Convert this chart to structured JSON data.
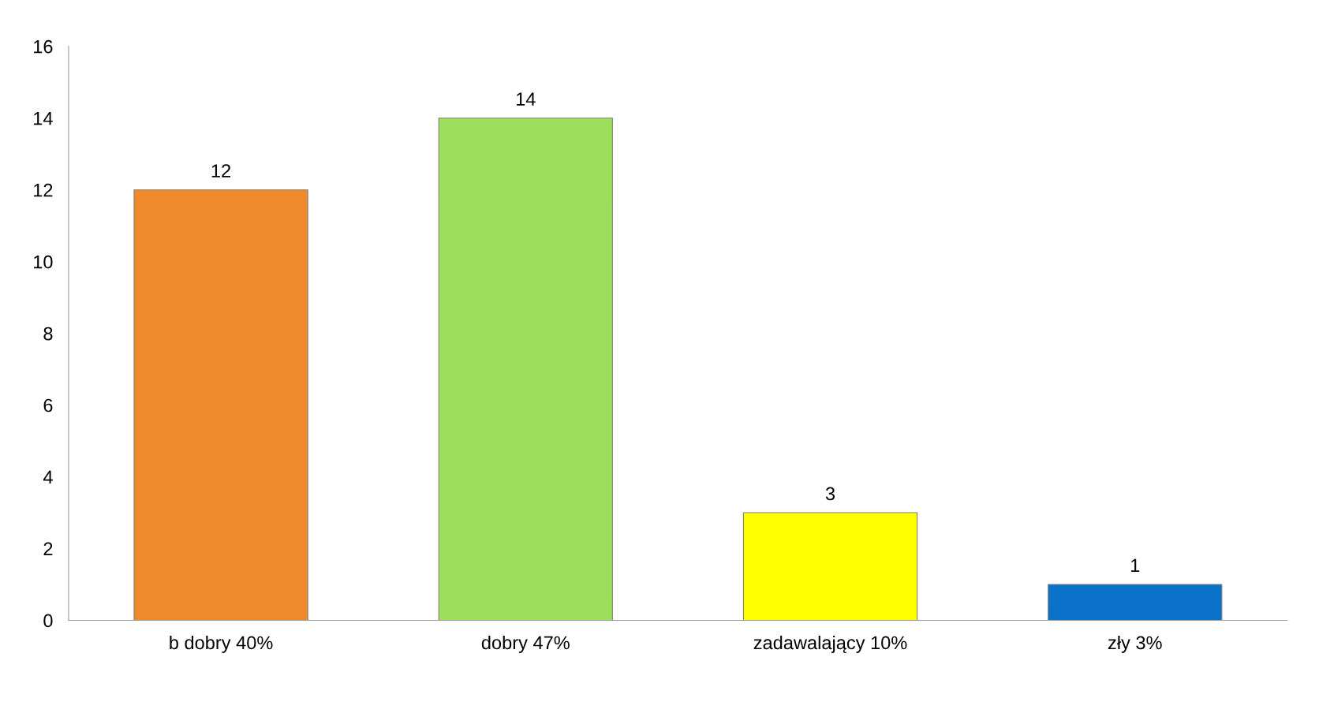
{
  "chart_data": {
    "type": "bar",
    "categories": [
      "b dobry 40%",
      "dobry 47%",
      "zadawalający 10%",
      "zły 3%"
    ],
    "values": [
      12,
      14,
      3,
      1
    ],
    "colors": [
      "#ee8a2c",
      "#9ddf5a",
      "#ffff00",
      "#0a72c8"
    ],
    "ylim": [
      0,
      16
    ],
    "yticks": [
      0,
      2,
      4,
      6,
      8,
      10,
      12,
      14,
      16
    ],
    "grid": false,
    "data_labels": true
  }
}
